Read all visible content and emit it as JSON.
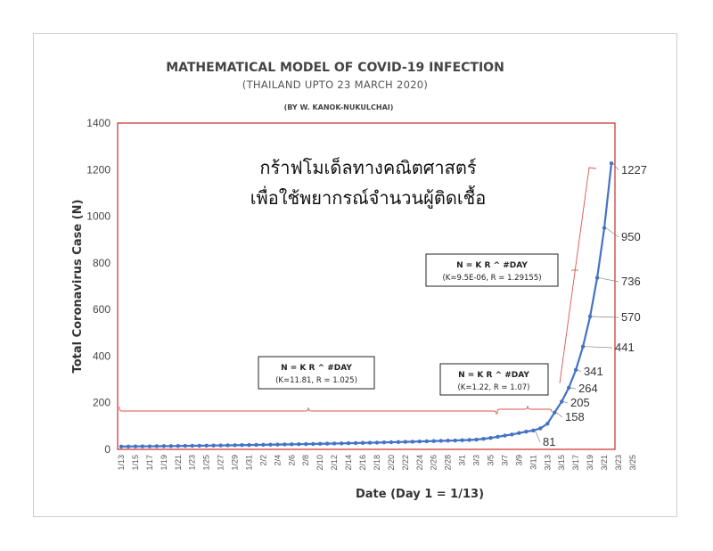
{
  "chart_data": {
    "type": "line",
    "title": "MATHEMATICAL MODEL OF COVID-19 INFECTION",
    "subtitle": "(THAILAND UPTO 23 MARCH 2020)",
    "author": "(BY W. KANOK-NUKULCHAI)",
    "thai_line1": "กร้าฟโมเด็ลทางคณิตศาสตร์",
    "thai_line2": "เพื่อใช้พยากรณ์จำนวนผู้ติดเชื้อ",
    "xlabel": "Date (Day 1 = 1/13)",
    "ylabel": "Total Coronavirus Case (N)",
    "ylim": [
      0,
      1400
    ],
    "y_ticks": [
      "0",
      "200",
      "400",
      "600",
      "800",
      "1000",
      "1200",
      "1400"
    ],
    "x_tick_labels": [
      "1/13",
      "1/15",
      "1/17",
      "1/19",
      "1/21",
      "1/23",
      "1/25",
      "1/27",
      "1/29",
      "1/31",
      "2/2",
      "2/4",
      "2/6",
      "2/8",
      "2/10",
      "2/12",
      "2/14",
      "2/16",
      "2/18",
      "2/20",
      "2/22",
      "2/24",
      "2/26",
      "2/28",
      "3/1",
      "3/3",
      "3/5",
      "3/7",
      "3/9",
      "3/11",
      "3/13",
      "3/15",
      "3/17",
      "3/19",
      "3/21",
      "3/23",
      "3/25"
    ],
    "series": [
      {
        "values": [
          12,
          12.3,
          12.6,
          12.9,
          13.2,
          13.5,
          13.9,
          14.2,
          14.6,
          14.9,
          15.3,
          15.7,
          16.1,
          16.5,
          16.9,
          17.3,
          17.7,
          18.2,
          18.6,
          19.1,
          19.6,
          20.1,
          20.6,
          21.1,
          21.6,
          22.2,
          22.7,
          23.3,
          23.9,
          24.5,
          25.1,
          25.7,
          26.4,
          27,
          27.7,
          28.4,
          29.1,
          29.8,
          30.6,
          31.3,
          32.1,
          32.9,
          33.8,
          34.6,
          35.5,
          36.4,
          37.3,
          38.2,
          39.2,
          40.2,
          42,
          45,
          49,
          54,
          59,
          64,
          70,
          76,
          81,
          90,
          110,
          158,
          205,
          264,
          341,
          441,
          570,
          736,
          950,
          1227
        ],
        "color": "#4472c4"
      }
    ],
    "point_labels": [
      {
        "index": 58,
        "text": "81"
      },
      {
        "index": 61,
        "text": "158"
      },
      {
        "index": 62,
        "text": "205"
      },
      {
        "index": 63,
        "text": "264"
      },
      {
        "index": 64,
        "text": "341"
      },
      {
        "index": 65,
        "text": "441"
      },
      {
        "index": 66,
        "text": "570"
      },
      {
        "index": 67,
        "text": "736"
      },
      {
        "index": 68,
        "text": "950"
      },
      {
        "index": 69,
        "text": "1227"
      }
    ],
    "annotations": [
      {
        "line1": "N = K R ^ #DAY",
        "line2": "(K=11.81, R = 1.025)"
      },
      {
        "line1": "N = K R ^ #DAY",
        "line2": "(K=1.22, R = 1.07)"
      },
      {
        "line1": "N = K R ^ #DAY",
        "line2": "(K=9.5E-06, R = 1.29155)"
      }
    ],
    "grid": false,
    "legend": "none",
    "line_color": "#4472c4",
    "annotation_color": "#d9534f",
    "plot_border_color": "#c00000"
  }
}
